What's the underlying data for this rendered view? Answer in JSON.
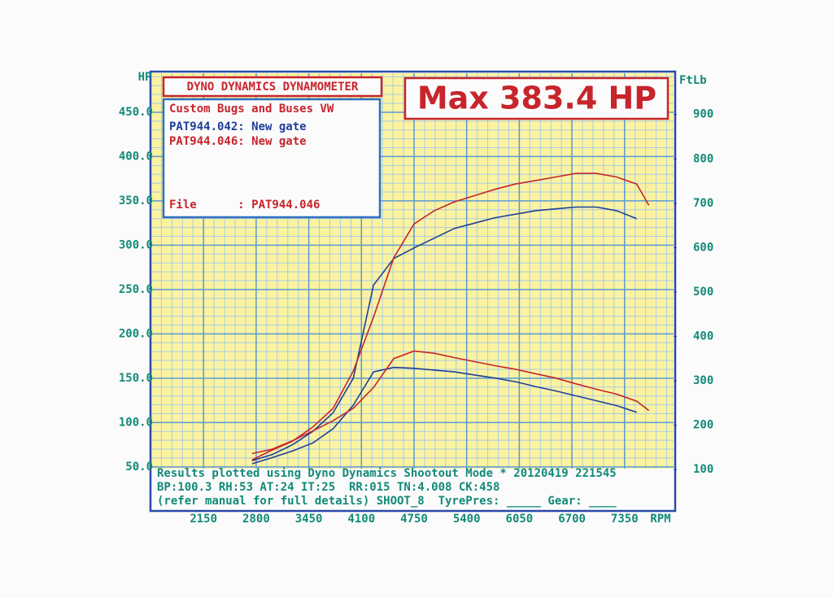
{
  "chart_data": {
    "type": "line",
    "title": "DYNO DYNAMICS DYNAMOMETER",
    "headline": "Max 383.4 HP",
    "info": {
      "customer": "Custom Bugs and Buses VW",
      "file": "File      : PAT944.046"
    },
    "footer": [
      "Results plotted using Dyno Dynamics Shootout Mode * 20120419 221545",
      "BP:100.3 RH:53 AT:24 IT:25  RR:015 TN:4.008 CK:458",
      "(refer manual for full details) SHOOT_8  TyrePres: _____ Gear: ____"
    ],
    "y_label": "HP",
    "y2_label": "FtLb",
    "x_label": "RPM",
    "x": [
      2750,
      3000,
      3250,
      3500,
      3750,
      4000,
      4250,
      4500,
      4750,
      5000,
      5250,
      5500,
      5750,
      6000,
      6250,
      6500,
      6750,
      7000,
      7250,
      7500,
      7650
    ],
    "series": [
      {
        "name": "PAT944.042: New gate",
        "color": "#1f3f9a",
        "values": [
          57,
          64,
          75,
          90,
          111,
          150,
          255,
          285,
          297,
          308,
          319,
          325,
          331,
          335,
          339,
          341,
          343,
          343,
          339,
          330,
          null
        ],
        "torque": [
          113,
          127,
          142,
          160,
          192,
          245,
          320,
          330,
          328,
          324,
          320,
          313,
          306,
          298,
          287,
          277,
          266,
          255,
          244,
          229,
          null
        ]
      },
      {
        "name": "PAT944.046: New gate",
        "color": "#c8242c",
        "values": [
          58,
          69,
          79,
          95,
          116,
          158,
          219,
          286,
          324,
          339,
          349,
          356,
          363,
          369,
          373,
          377,
          381,
          381,
          377,
          369,
          345
        ],
        "torque": [
          136,
          146,
          165,
          187,
          210,
          238,
          285,
          350,
          367,
          362,
          352,
          343,
          334,
          326,
          316,
          306,
          293,
          281,
          270,
          254,
          233
        ]
      }
    ],
    "xlim": [
      1505,
      7955
    ],
    "xticks": [
      2150,
      2800,
      3450,
      4100,
      4750,
      5400,
      6050,
      6700,
      7350
    ],
    "ylim": [
      48,
      494
    ],
    "yticks": [
      {
        "value": 50,
        "label": "50.0"
      },
      {
        "value": 100,
        "label": "100.0"
      },
      {
        "value": 150,
        "label": "150.0"
      },
      {
        "value": 200,
        "label": "200.0"
      },
      {
        "value": 250,
        "label": "250.0"
      },
      {
        "value": 300,
        "label": "300.0"
      },
      {
        "value": 350,
        "label": "350.0"
      },
      {
        "value": 400,
        "label": "400.0"
      },
      {
        "value": 450,
        "label": "450.0"
      }
    ],
    "y2lim": [
      102,
      993
    ],
    "y2ticks": [
      100,
      200,
      300,
      400,
      500,
      600,
      700,
      800,
      900
    ],
    "grid": true
  }
}
